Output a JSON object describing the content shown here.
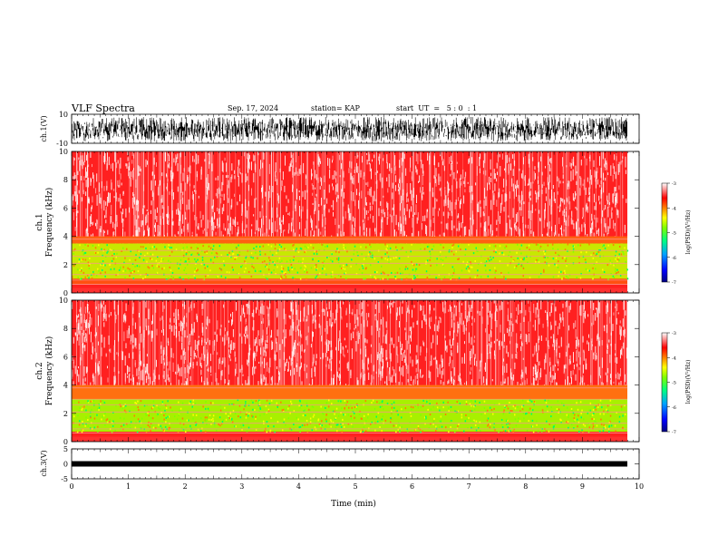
{
  "header": {
    "title": "VLF Spectra",
    "date": "Sep. 17, 2024",
    "station": "station= KAP",
    "start": "start  UT  =   5 : 0  : 1"
  },
  "chart_data": [
    {
      "type": "line",
      "panel": "ch1-waveform",
      "ylabel": "ch.1(V)",
      "ylim": [
        -10,
        10
      ],
      "y_ticks": [
        "10",
        "-10"
      ],
      "xlim": [
        0,
        10
      ],
      "series_color": "#000000"
    },
    {
      "type": "heatmap",
      "panel": "ch1-spectrogram",
      "ylabel_top": "ch.1",
      "ylabel": "Frequency (kHz)",
      "ylim": [
        0,
        10
      ],
      "y_ticks": [
        "0",
        "2",
        "4",
        "6",
        "8",
        "10"
      ],
      "xlim": [
        0,
        10
      ],
      "colorbar": {
        "label": "log(PSD)(V²/Hz)",
        "range": [
          -7,
          -3
        ],
        "ticks": [
          "-3",
          "-4",
          "-5",
          "-6",
          "-7"
        ]
      }
    },
    {
      "type": "heatmap",
      "panel": "ch2-spectrogram",
      "ylabel_top": "ch.2",
      "ylabel": "Frequency (kHz)",
      "ylim": [
        0,
        10
      ],
      "y_ticks": [
        "0",
        "2",
        "4",
        "6",
        "8",
        "10"
      ],
      "xlim": [
        0,
        10
      ],
      "colorbar": {
        "label": "log(PSD)(V²/Hz)",
        "range": [
          -7,
          -3
        ],
        "ticks": [
          "-3",
          "-4",
          "-5",
          "-6",
          "-7"
        ]
      }
    },
    {
      "type": "line",
      "panel": "ch3-waveform",
      "ylabel": "ch.3(V)",
      "ylim": [
        -5,
        5
      ],
      "y_ticks": [
        "5",
        "0",
        "-5"
      ],
      "xlim": [
        0,
        10
      ],
      "x_ticks": [
        "0",
        "1",
        "2",
        "3",
        "4",
        "5",
        "6",
        "7",
        "8",
        "9",
        "10"
      ],
      "xlabel": "Time (min)",
      "series_color": "#000000"
    }
  ],
  "colormap": [
    "#000080",
    "#0000ff",
    "#00a0ff",
    "#00ff80",
    "#80ff00",
    "#ffff00",
    "#ff8000",
    "#ff0000",
    "#ffffff"
  ]
}
